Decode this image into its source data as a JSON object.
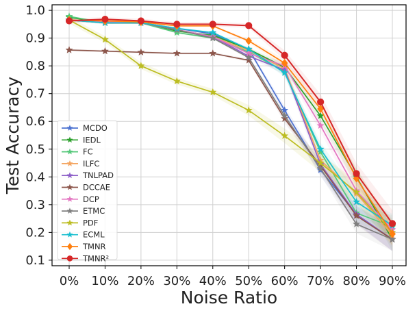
{
  "chart_data": {
    "type": "line",
    "title": "",
    "xlabel": "Noise Ratio",
    "ylabel": "Test Accuracy",
    "categories": [
      "0%",
      "10%",
      "20%",
      "30%",
      "40%",
      "50%",
      "60%",
      "70%",
      "80%",
      "90%"
    ],
    "ylim": [
      0.08,
      1.02
    ],
    "yticks": [
      "0.1",
      "0.2",
      "0.3",
      "0.4",
      "0.5",
      "0.6",
      "0.7",
      "0.8",
      "0.9",
      "1.0"
    ],
    "ytick_values": [
      0.1,
      0.2,
      0.3,
      0.4,
      0.5,
      0.6,
      0.7,
      0.8,
      0.9,
      1.0
    ],
    "grid": true,
    "legend_position": "bottom-left",
    "series": [
      {
        "name": "MCDO",
        "label": "MCDO",
        "color": "#4c72d1",
        "marker": "star",
        "values": [
          0.965,
          0.955,
          0.955,
          0.935,
          0.915,
          0.86,
          0.64,
          0.425,
          0.265,
          0.175
        ]
      },
      {
        "name": "IEDL",
        "label": "IEDL",
        "color": "#2ca02c",
        "marker": "star",
        "values": [
          0.975,
          0.955,
          0.958,
          0.925,
          0.91,
          0.86,
          0.795,
          0.62,
          0.4,
          0.175
        ]
      },
      {
        "name": "FC",
        "label": "FC",
        "color": "#55c87a",
        "marker": "star",
        "values": [
          0.978,
          0.955,
          0.955,
          0.92,
          0.9,
          0.85,
          0.78,
          0.49,
          0.27,
          0.22
        ]
      },
      {
        "name": "ILFC",
        "label": "ILFC",
        "color": "#f4a45f",
        "marker": "star",
        "values": [
          0.965,
          0.955,
          0.955,
          0.93,
          0.905,
          0.855,
          0.79,
          0.46,
          0.34,
          0.19
        ]
      },
      {
        "name": "TNLPAD",
        "label": "TNLPAD",
        "color": "#8c5ec8",
        "marker": "star",
        "values": [
          0.965,
          0.96,
          0.955,
          0.93,
          0.905,
          0.835,
          0.785,
          0.445,
          0.265,
          0.175
        ]
      },
      {
        "name": "DCCAE",
        "label": "DCCAE",
        "color": "#8c564b",
        "marker": "star",
        "values": [
          0.857,
          0.853,
          0.849,
          0.845,
          0.845,
          0.82,
          0.61,
          0.44,
          0.26,
          0.175
        ]
      },
      {
        "name": "DCP",
        "label": "DCP",
        "color": "#e377c2",
        "marker": "star",
        "values": [
          0.965,
          0.96,
          0.955,
          0.93,
          0.905,
          0.845,
          0.8,
          0.585,
          0.35,
          0.21
        ]
      },
      {
        "name": "ETMC",
        "label": "ETMC",
        "color": "#7f7f7f",
        "marker": "star",
        "values": [
          0.965,
          0.955,
          0.955,
          0.93,
          0.9,
          0.83,
          0.62,
          0.43,
          0.23,
          0.175
        ]
      },
      {
        "name": "PDF",
        "label": "PDF",
        "color": "#bcbd22",
        "marker": "star",
        "values": [
          0.965,
          0.895,
          0.8,
          0.745,
          0.705,
          0.64,
          0.548,
          0.45,
          0.345,
          0.2
        ]
      },
      {
        "name": "ECML",
        "label": "ECML",
        "color": "#17becf",
        "marker": "star",
        "values": [
          0.965,
          0.955,
          0.955,
          0.935,
          0.92,
          0.86,
          0.775,
          0.5,
          0.31,
          0.225
        ]
      },
      {
        "name": "TMNR",
        "label": "TMNR",
        "color": "#ff7f0e",
        "marker": "diamond",
        "values": [
          0.965,
          0.962,
          0.958,
          0.944,
          0.944,
          0.89,
          0.81,
          0.645,
          0.395,
          0.195
        ]
      },
      {
        "name": "TMNR2",
        "label": "TMNR²",
        "color": "#d62728",
        "marker": "circle",
        "values": [
          0.962,
          0.968,
          0.962,
          0.95,
          0.95,
          0.945,
          0.838,
          0.67,
          0.412,
          0.232
        ]
      }
    ]
  }
}
